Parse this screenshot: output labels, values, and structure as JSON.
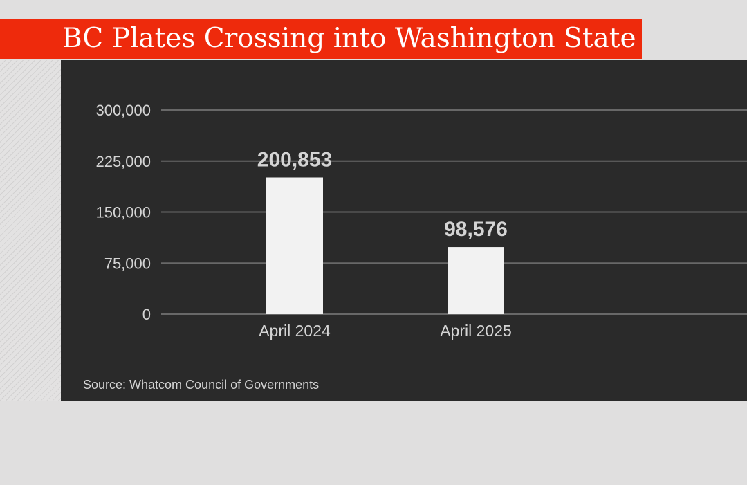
{
  "chart_data": {
    "type": "bar",
    "title": "BC Plates Crossing into Washington State",
    "categories": [
      "April 2024",
      "April 2025"
    ],
    "values": [
      200853,
      98576
    ],
    "value_labels": [
      "200,853",
      "98,576"
    ],
    "yticks": [
      0,
      75000,
      150000,
      225000,
      300000
    ],
    "ytick_labels": [
      "0",
      "75,000",
      "150,000",
      "225,000",
      "300,000"
    ],
    "ylim": [
      0,
      300000
    ],
    "grid": true,
    "xlabel": "",
    "ylabel": "",
    "source": "Source: Whatcom Council of Governments"
  },
  "colors": {
    "banner": "#ee2a0c",
    "panel": "#2a2a2a",
    "bar": "#f2f2f2",
    "gridline": "#686868",
    "text": "#d4d4d4",
    "background": "#e0dfdf"
  }
}
